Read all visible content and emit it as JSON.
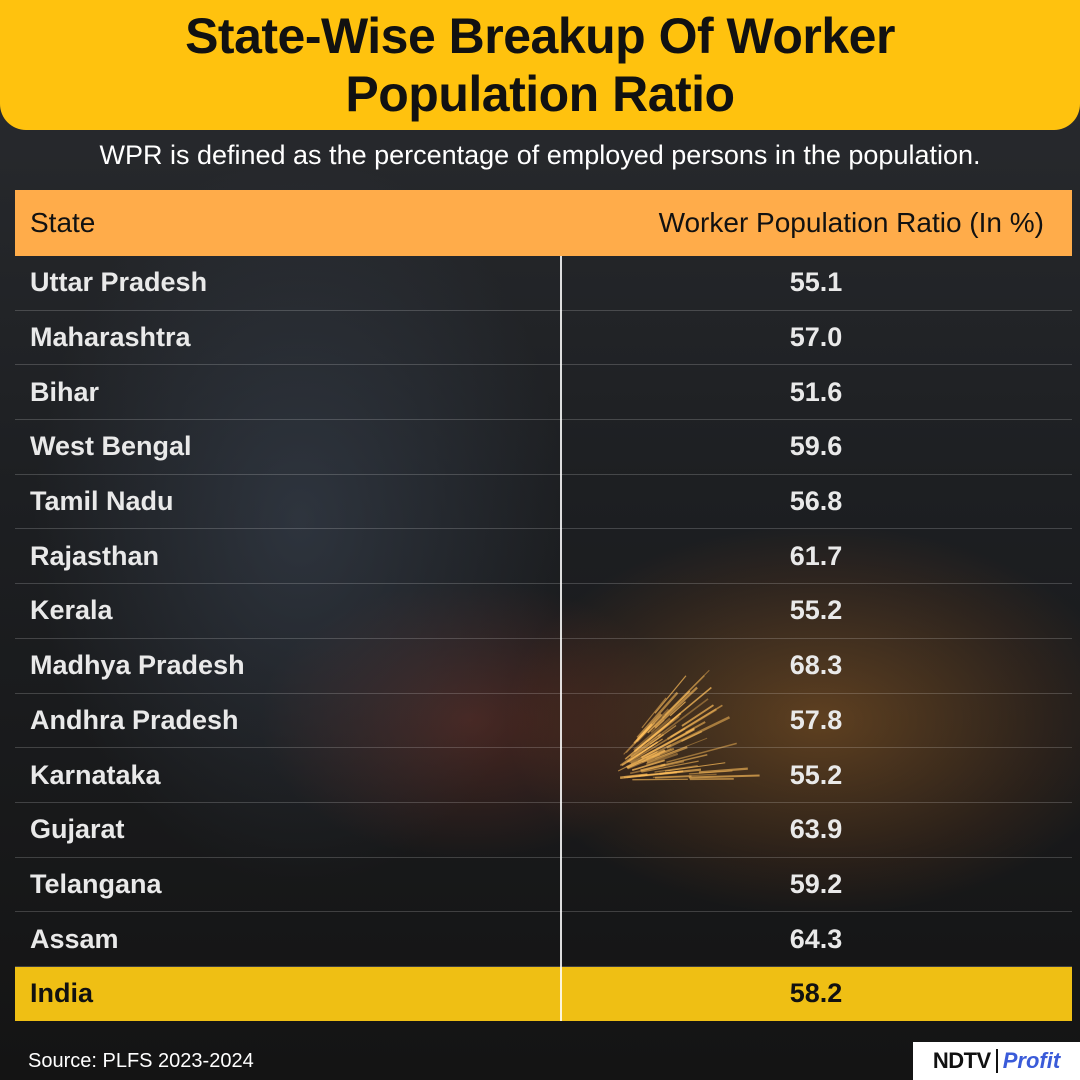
{
  "header": {
    "title": "State-Wise Breakup Of Worker Population Ratio",
    "subtitle": "WPR is defined as the percentage of employed persons in the population."
  },
  "chart_data": {
    "type": "table",
    "columns": [
      "State",
      "Worker Population Ratio (In %)"
    ],
    "rows": [
      {
        "state": "Uttar Pradesh",
        "value": "55.1"
      },
      {
        "state": "Maharashtra",
        "value": "57.0"
      },
      {
        "state": "Bihar",
        "value": "51.6"
      },
      {
        "state": "West Bengal",
        "value": "59.6"
      },
      {
        "state": "Tamil Nadu",
        "value": "56.8"
      },
      {
        "state": "Rajasthan",
        "value": "61.7"
      },
      {
        "state": "Kerala",
        "value": "55.2"
      },
      {
        "state": "Madhya Pradesh",
        "value": "68.3"
      },
      {
        "state": "Andhra Pradesh",
        "value": "57.8"
      },
      {
        "state": "Karnataka",
        "value": "55.2"
      },
      {
        "state": "Gujarat",
        "value": "63.9"
      },
      {
        "state": "Telangana",
        "value": "59.2"
      },
      {
        "state": "Assam",
        "value": "64.3"
      }
    ],
    "total": {
      "state": "India",
      "value": "58.2"
    }
  },
  "footer": {
    "source": "Source: PLFS 2023-2024",
    "logo_left": "NDTV",
    "logo_right": "Profit"
  },
  "colors": {
    "header_bg": "#ffc20e",
    "table_header_bg": "#ffac4a",
    "total_row_bg": "#efbf14",
    "logo_accent": "#3a5bd9"
  }
}
